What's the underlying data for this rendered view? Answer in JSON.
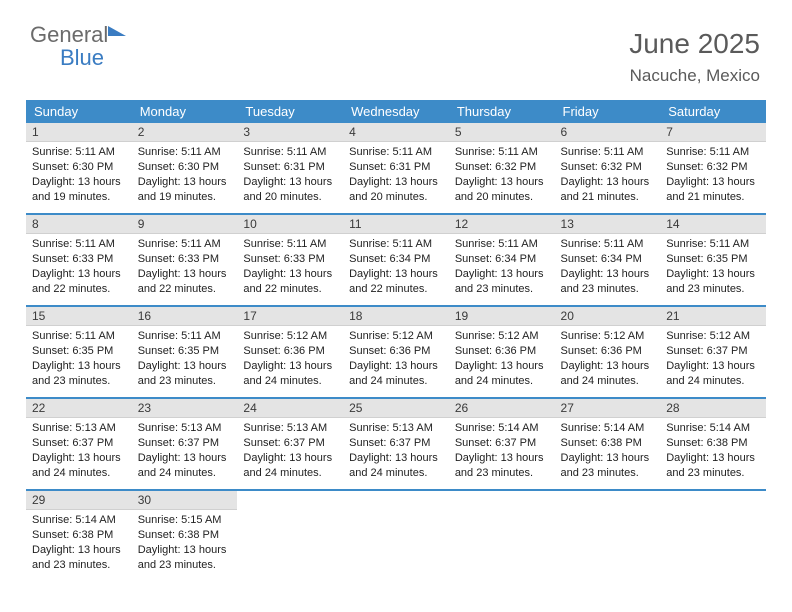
{
  "logo": {
    "word1": "General",
    "word2": "Blue"
  },
  "header": {
    "title": "June 2025",
    "location": "Nacuche, Mexico"
  },
  "calendar": {
    "header_bg": "#3d8bc8",
    "header_fg": "#ffffff",
    "daynum_bg": "#e4e4e4",
    "columns": [
      "Sunday",
      "Monday",
      "Tuesday",
      "Wednesday",
      "Thursday",
      "Friday",
      "Saturday"
    ],
    "weeks": [
      [
        {
          "n": "1",
          "sr": "5:11 AM",
          "ss": "6:30 PM",
          "dl": "13 hours and 19 minutes."
        },
        {
          "n": "2",
          "sr": "5:11 AM",
          "ss": "6:30 PM",
          "dl": "13 hours and 19 minutes."
        },
        {
          "n": "3",
          "sr": "5:11 AM",
          "ss": "6:31 PM",
          "dl": "13 hours and 20 minutes."
        },
        {
          "n": "4",
          "sr": "5:11 AM",
          "ss": "6:31 PM",
          "dl": "13 hours and 20 minutes."
        },
        {
          "n": "5",
          "sr": "5:11 AM",
          "ss": "6:32 PM",
          "dl": "13 hours and 20 minutes."
        },
        {
          "n": "6",
          "sr": "5:11 AM",
          "ss": "6:32 PM",
          "dl": "13 hours and 21 minutes."
        },
        {
          "n": "7",
          "sr": "5:11 AM",
          "ss": "6:32 PM",
          "dl": "13 hours and 21 minutes."
        }
      ],
      [
        {
          "n": "8",
          "sr": "5:11 AM",
          "ss": "6:33 PM",
          "dl": "13 hours and 22 minutes."
        },
        {
          "n": "9",
          "sr": "5:11 AM",
          "ss": "6:33 PM",
          "dl": "13 hours and 22 minutes."
        },
        {
          "n": "10",
          "sr": "5:11 AM",
          "ss": "6:33 PM",
          "dl": "13 hours and 22 minutes."
        },
        {
          "n": "11",
          "sr": "5:11 AM",
          "ss": "6:34 PM",
          "dl": "13 hours and 22 minutes."
        },
        {
          "n": "12",
          "sr": "5:11 AM",
          "ss": "6:34 PM",
          "dl": "13 hours and 23 minutes."
        },
        {
          "n": "13",
          "sr": "5:11 AM",
          "ss": "6:34 PM",
          "dl": "13 hours and 23 minutes."
        },
        {
          "n": "14",
          "sr": "5:11 AM",
          "ss": "6:35 PM",
          "dl": "13 hours and 23 minutes."
        }
      ],
      [
        {
          "n": "15",
          "sr": "5:11 AM",
          "ss": "6:35 PM",
          "dl": "13 hours and 23 minutes."
        },
        {
          "n": "16",
          "sr": "5:11 AM",
          "ss": "6:35 PM",
          "dl": "13 hours and 23 minutes."
        },
        {
          "n": "17",
          "sr": "5:12 AM",
          "ss": "6:36 PM",
          "dl": "13 hours and 24 minutes."
        },
        {
          "n": "18",
          "sr": "5:12 AM",
          "ss": "6:36 PM",
          "dl": "13 hours and 24 minutes."
        },
        {
          "n": "19",
          "sr": "5:12 AM",
          "ss": "6:36 PM",
          "dl": "13 hours and 24 minutes."
        },
        {
          "n": "20",
          "sr": "5:12 AM",
          "ss": "6:36 PM",
          "dl": "13 hours and 24 minutes."
        },
        {
          "n": "21",
          "sr": "5:12 AM",
          "ss": "6:37 PM",
          "dl": "13 hours and 24 minutes."
        }
      ],
      [
        {
          "n": "22",
          "sr": "5:13 AM",
          "ss": "6:37 PM",
          "dl": "13 hours and 24 minutes."
        },
        {
          "n": "23",
          "sr": "5:13 AM",
          "ss": "6:37 PM",
          "dl": "13 hours and 24 minutes."
        },
        {
          "n": "24",
          "sr": "5:13 AM",
          "ss": "6:37 PM",
          "dl": "13 hours and 24 minutes."
        },
        {
          "n": "25",
          "sr": "5:13 AM",
          "ss": "6:37 PM",
          "dl": "13 hours and 24 minutes."
        },
        {
          "n": "26",
          "sr": "5:14 AM",
          "ss": "6:37 PM",
          "dl": "13 hours and 23 minutes."
        },
        {
          "n": "27",
          "sr": "5:14 AM",
          "ss": "6:38 PM",
          "dl": "13 hours and 23 minutes."
        },
        {
          "n": "28",
          "sr": "5:14 AM",
          "ss": "6:38 PM",
          "dl": "13 hours and 23 minutes."
        }
      ],
      [
        {
          "n": "29",
          "sr": "5:14 AM",
          "ss": "6:38 PM",
          "dl": "13 hours and 23 minutes."
        },
        {
          "n": "30",
          "sr": "5:15 AM",
          "ss": "6:38 PM",
          "dl": "13 hours and 23 minutes."
        },
        null,
        null,
        null,
        null,
        null
      ]
    ],
    "labels": {
      "sunrise": "Sunrise: ",
      "sunset": "Sunset: ",
      "daylight": "Daylight: "
    }
  }
}
